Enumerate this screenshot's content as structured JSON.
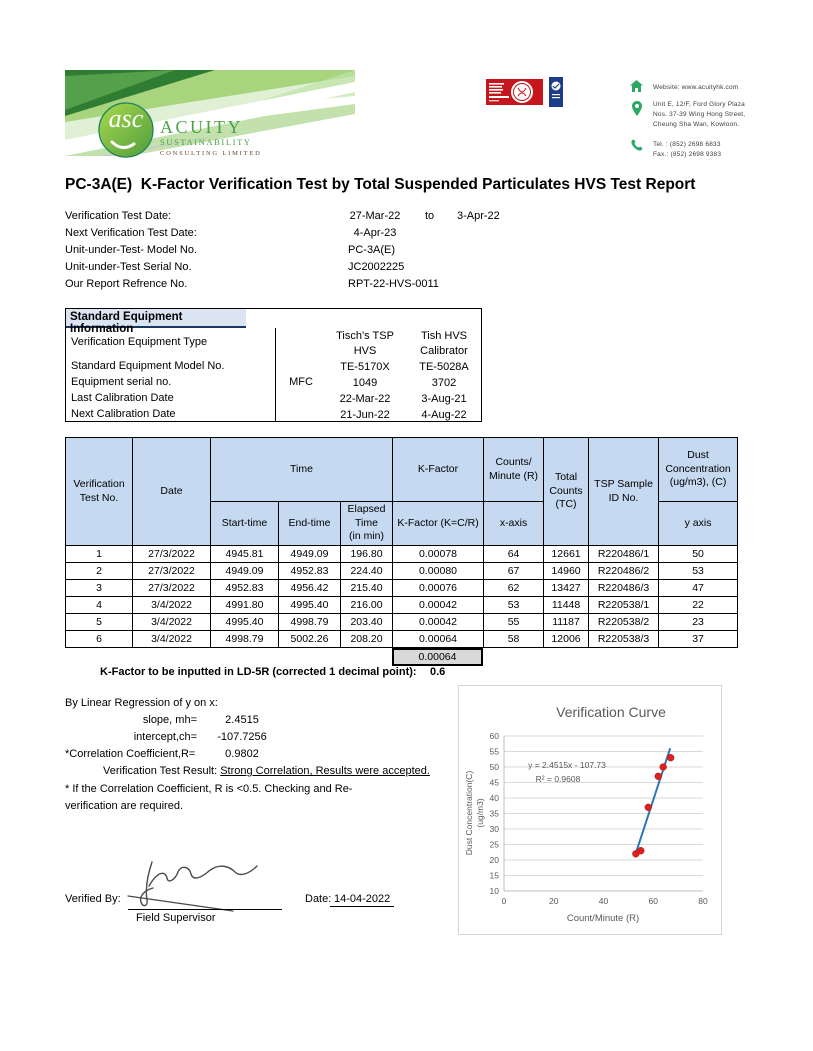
{
  "header": {
    "company": {
      "monogram": "asc",
      "name": "ACUITY",
      "name2": "SUSTAINABILITY",
      "name3": "CONSULTING LIMITED"
    },
    "contact": {
      "website": "Website: www.acuityhk.com",
      "address_lines": [
        "Unit E, 12/F, Ford Glory Plaza",
        "Nos. 37-39 Wing Hong Street,",
        "Cheung Sha Wan, Kowloon."
      ],
      "tel": "Tel. : (852) 2698 6833",
      "fax": "Fax.: (852) 2698 9383"
    }
  },
  "title": "PC-3A(E)  K-Factor Verification Test by Total Suspended Particulates HVS Test Report",
  "info": {
    "rows": [
      {
        "label": "Verification Test Date:",
        "value": "27-Mar-22",
        "connector": "to",
        "value2": "3-Apr-22"
      },
      {
        "label": "Next Verification Test Date:",
        "value": "4-Apr-23"
      },
      {
        "label": "Unit-under-Test- Model No.",
        "value": "PC-3A(E)"
      },
      {
        "label": "Unit-under-Test Serial No.",
        "value": "JC2002225"
      },
      {
        "label": "Our Report Refrence No.",
        "value": "RPT-22-HVS-0011"
      }
    ]
  },
  "equipment": {
    "title": "Standard Equipment Information",
    "rows": [
      {
        "label": "Verification Equipment Type",
        "mfc": "",
        "col1": "Tisch’s TSP\nHVS",
        "col2": "Tish HVS\nCalibrator"
      },
      {
        "label": "Standard Equipment Model No.",
        "mfc": "",
        "col1": "TE-5170X",
        "col2": "TE-5028A"
      },
      {
        "label": "Equipment serial no.",
        "mfc": "MFC",
        "col1": "1049",
        "col2": "3702"
      },
      {
        "label": "Last Calibration Date",
        "mfc": "",
        "col1": "22-Mar-22",
        "col2": "3-Aug-21"
      },
      {
        "label": "Next Calibration Date",
        "mfc": "",
        "col1": "21-Jun-22",
        "col2": "4-Aug-22"
      }
    ]
  },
  "main_table": {
    "headers": {
      "verification": "Verification\nTest No.",
      "date": "Date",
      "time_group": "Time",
      "start": "Start-time",
      "end": "End-time",
      "elapsed": "Elapsed\nTime\n(in min)",
      "kfactor_group": "K-Factor",
      "kfactor": "K-Factor (K=C/R)",
      "counts_min": "Counts/\nMinute (R)",
      "x_axis": "x-axis",
      "total": "Total\nCounts\n(TC)",
      "tsp": "TSP Sample\nID No.",
      "dust": "Dust\nConcentration\n(ug/m3), (C)",
      "y_axis": "y axis"
    },
    "rows": [
      [
        "1",
        "27/3/2022",
        "4945.81",
        "4949.09",
        "196.80",
        "0.00078",
        "64",
        "12661",
        "R220486/1",
        "50"
      ],
      [
        "2",
        "27/3/2022",
        "4949.09",
        "4952.83",
        "224.40",
        "0.00080",
        "67",
        "14960",
        "R220486/2",
        "53"
      ],
      [
        "3",
        "27/3/2022",
        "4952.83",
        "4956.42",
        "215.40",
        "0.00076",
        "62",
        "13427",
        "R220486/3",
        "47"
      ],
      [
        "4",
        "3/4/2022",
        "4991.80",
        "4995.40",
        "216.00",
        "0.00042",
        "53",
        "11448",
        "R220538/1",
        "22"
      ],
      [
        "5",
        "3/4/2022",
        "4995.40",
        "4998.79",
        "203.40",
        "0.00042",
        "55",
        "11187",
        "R220538/2",
        "23"
      ],
      [
        "6",
        "3/4/2022",
        "4998.79",
        "5002.26",
        "208.20",
        "0.00064",
        "58",
        "12006",
        "R220538/3",
        "37"
      ]
    ],
    "k_factor_average": "0.00064",
    "k_factor_note_label": "K-Factor to be inputted in LD-5R (corrected 1 decimal point):",
    "k_factor_note_value": "0.6"
  },
  "regression": {
    "heading": "By Linear Regression of y on x:",
    "slope_label": "slope, mh=",
    "slope_value": "2.4515",
    "intercept_label": "intercept,ch=",
    "intercept_value": "-107.7256",
    "corr_label": "*Correlation Coefficient,R=",
    "corr_value": "0.9802",
    "result_label": "Verification Test Result:",
    "result_value": "Strong Correlation, Results were accepted.",
    "note_line1": "* If the Correlation Coefficient, R is <0.5. Checking and Re-",
    "note_line2": "verification are required."
  },
  "signature": {
    "verified_by_label": "Verified By:",
    "role": "Field Supervisor",
    "date_label": "Date:",
    "date_value": "14-04-2022"
  },
  "chart_data": {
    "type": "scatter",
    "title": "Verification Curve",
    "xlabel": "Count/Minute (R)",
    "ylabel_lines": [
      "Dust Concentration(C)",
      "(ug/m3)"
    ],
    "x": [
      64,
      67,
      62,
      53,
      55,
      58
    ],
    "y": [
      50,
      53,
      47,
      22,
      23,
      37
    ],
    "xlim": [
      0,
      80
    ],
    "ylim": [
      10,
      60
    ],
    "xticks": [
      0,
      20,
      40,
      60,
      80
    ],
    "yticks": [
      10,
      15,
      20,
      25,
      30,
      35,
      40,
      45,
      50,
      55,
      60
    ],
    "grid": "horizontal",
    "legend": "none",
    "annotation_line1": "y = 2.4515x - 107.73",
    "annotation_line2": "R² = 0.9608",
    "trendline": {
      "slope": 2.4515,
      "intercept": -107.73,
      "x_start": 53.0,
      "x_end": 66.8
    },
    "point_color": "#e01f1f",
    "line_color": "#2e75b6"
  },
  "colors": {
    "table_header_fill": "#c5d9f1",
    "equip_title_fill": "#dbe5f1",
    "equip_title_border": "#17375e",
    "summary_cell_fill": "#d9d9d9",
    "brand_green": "#4ba146",
    "badge_red": "#c4161c",
    "badge_blue": "#1e3c8c",
    "chart_text_gray": "#595959"
  }
}
